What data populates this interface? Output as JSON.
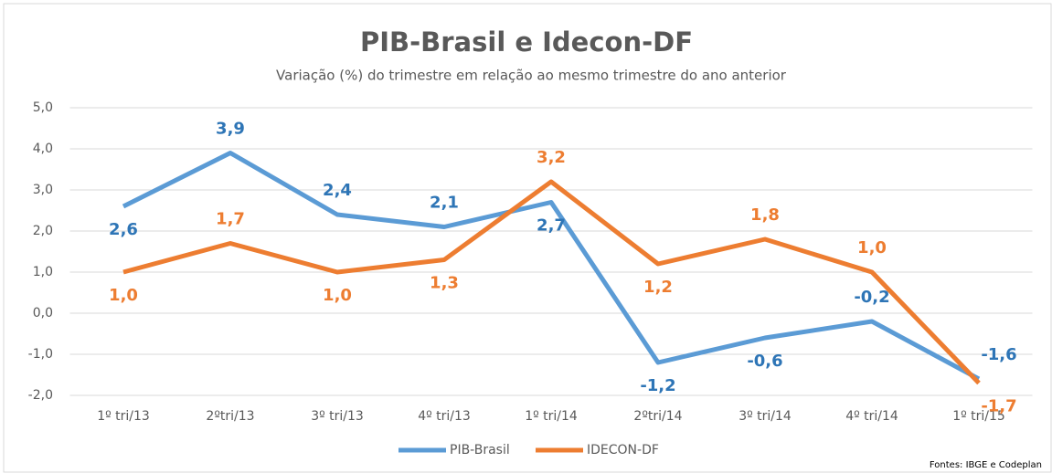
{
  "chart_data": {
    "type": "line",
    "title": "PIB-Brasil e Idecon-DF",
    "subtitle": "Variação (%) do trimestre em relação ao mesmo trimestre do ano anterior",
    "categories": [
      "1º tri/13",
      "2ºtri/13",
      "3º tri/13",
      "4º tri/13",
      "1º tri/14",
      "2ºtri/14",
      "3º tri/14",
      "4º tri/14",
      "1º tri/15"
    ],
    "series": [
      {
        "name": "PIB-Brasil",
        "color": "#5b9bd5",
        "label_color": "#2e75b6",
        "values": [
          2.6,
          3.9,
          2.4,
          2.1,
          2.7,
          -1.2,
          -0.6,
          -0.2,
          -1.6
        ],
        "value_labels": [
          "2,6",
          "3,9",
          "2,4",
          "2,1",
          "2,7",
          "-1,2",
          "-0,6",
          "-0,2",
          "-1,6"
        ]
      },
      {
        "name": "IDECON-DF",
        "color": "#ed7d31",
        "label_color": "#ed7d31",
        "values": [
          1.0,
          1.7,
          1.0,
          1.3,
          3.2,
          1.2,
          1.8,
          1.0,
          -1.7
        ],
        "value_labels": [
          "1,0",
          "1,7",
          "1,0",
          "1,3",
          "3,2",
          "1,2",
          "1,8",
          "1,0",
          "-1,7"
        ]
      }
    ],
    "ylim": [
      -2,
      5
    ],
    "yticks": [
      {
        "value": -2,
        "label": "-2,0"
      },
      {
        "value": -1,
        "label": "-1,0"
      },
      {
        "value": 0,
        "label": "0,0"
      },
      {
        "value": 1,
        "label": "1,0"
      },
      {
        "value": 2,
        "label": "2,0"
      },
      {
        "value": 3,
        "label": "3,0"
      },
      {
        "value": 4,
        "label": "4,0"
      },
      {
        "value": 5,
        "label": "5,0"
      }
    ],
    "grid": true,
    "legend": "bottom",
    "source": "Fontes: IBGE e Codeplan"
  }
}
